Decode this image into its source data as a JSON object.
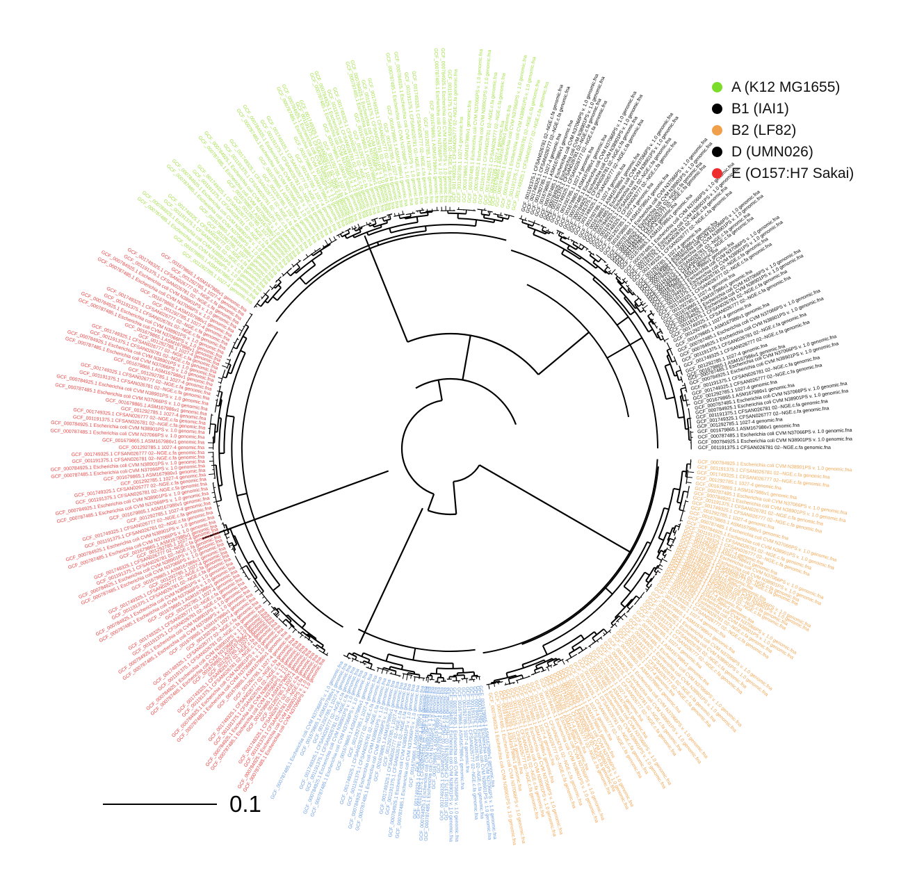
{
  "legend": {
    "items": [
      {
        "label": "A (K12 MG1655)",
        "color": "#7bdc2a"
      },
      {
        "label": "B1 (IAI1)",
        "color": "#000000"
      },
      {
        "label": "B2 (LF82)",
        "color": "#f0a04b"
      },
      {
        "label": "D (UMN026)",
        "color": "#000000"
      },
      {
        "label": "E (O157:H7 Sakai)",
        "color": "#ee2e2e"
      }
    ]
  },
  "scale_bar": {
    "label": "0.1",
    "value": 0.1
  },
  "clades": [
    {
      "group": "A (K12 MG1655)",
      "color": "#a6e04f",
      "label_prefix": "GCF_"
    },
    {
      "group": "B1 (IAI1)",
      "color": "#000000",
      "label_prefix": "GCF_"
    },
    {
      "group": "B2 (LF82)",
      "color": "#f2a857",
      "label_prefix": "GCF_"
    },
    {
      "group": "D (UMN026)",
      "color": "#6f9fe0",
      "label_prefix": "GCF_"
    },
    {
      "group": "E (O157:H7 Sakai)",
      "color": "#e84545",
      "label_prefix": "GCF_"
    }
  ],
  "tip_labels_sample": [
    "GCF_001749325.1 CFSAN026777 02--NGE.c.fa genomic.fna",
    "GCF_001191375.1 CFSAN026781 02--NGE.c.fa genomic.fna",
    "GCF_000784925.1 Escherichia coli CVM N38901PS v. 1.0 genomic.fna",
    "GCF_000787485.1 Escherichia coli CVM N37066PS v. 1.0 genomic.fna",
    "GCF_001679865.1 ASM167986v1 genomic.fna",
    "GCF_001292785.1 1027-4 genomic.fna"
  ]
}
